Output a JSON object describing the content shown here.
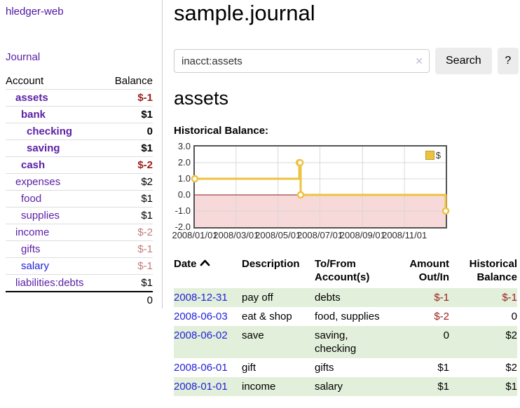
{
  "app": {
    "title": "hledger-web",
    "nav_journal": "Journal"
  },
  "colors": {
    "accent_purple": "#5b21a6",
    "link_blue": "#2323d8",
    "negative_red": "#9e1c1c",
    "negative_rose": "#c47a7a",
    "row_green": "#e2efda",
    "series_yellow": "#edc240"
  },
  "sidebar": {
    "headers": {
      "account": "Account",
      "balance": "Balance"
    },
    "accounts": [
      {
        "name": "assets",
        "balance": "$-1",
        "indent": 1,
        "bold": true,
        "negative": true
      },
      {
        "name": "bank",
        "balance": "$1",
        "indent": 2,
        "bold": true,
        "negative": false
      },
      {
        "name": "checking",
        "balance": "0",
        "indent": 3,
        "bold": true,
        "negative": false
      },
      {
        "name": "saving",
        "balance": "$1",
        "indent": 3,
        "bold": true,
        "negative": false
      },
      {
        "name": "cash",
        "balance": "$-2",
        "indent": 2,
        "bold": true,
        "negative": true
      },
      {
        "name": "expenses",
        "balance": "$2",
        "indent": 1,
        "bold": false,
        "negative": false
      },
      {
        "name": "food",
        "balance": "$1",
        "indent": 2,
        "bold": false,
        "negative": false
      },
      {
        "name": "supplies",
        "balance": "$1",
        "indent": 2,
        "bold": false,
        "negative": false
      },
      {
        "name": "income",
        "balance": "$-2",
        "indent": 1,
        "bold": false,
        "negative": true
      },
      {
        "name": "gifts",
        "balance": "$-1",
        "indent": 2,
        "bold": false,
        "negative": true
      },
      {
        "name": "salary",
        "balance": "$-1",
        "indent": 2,
        "bold": false,
        "negative": true,
        "link_color": "blue"
      },
      {
        "name": "liabilities:debts",
        "balance": "$1",
        "indent": 1,
        "bold": false,
        "negative": false
      }
    ],
    "total": "0"
  },
  "header": {
    "title": "sample.journal"
  },
  "search": {
    "query": "inacct:assets",
    "clear_icon": "✕",
    "search_label": "Search",
    "help_label": "?"
  },
  "account_page": {
    "heading": "assets",
    "chart_label": "Historical Balance:"
  },
  "chart_data": {
    "type": "line",
    "title": "Historical Balance:",
    "step": true,
    "x_start": "2008-01-01",
    "x_end": "2008-12-31",
    "x_ticks": [
      "2008/01/01",
      "2008/03/01",
      "2008/05/01",
      "2008/07/01",
      "2008/09/01",
      "2008/11/01"
    ],
    "y_ticks": [
      "3.0",
      "2.0",
      "1.0",
      "0.0",
      "-1.0",
      "-2.0"
    ],
    "ylim": [
      -2,
      3
    ],
    "grid": true,
    "legend_position": "top-right",
    "negative_region_color": "#f8d9d9",
    "zero_line_color": "#8b1a1a",
    "gridline_color": "#d8d8d8",
    "series": [
      {
        "name": "$",
        "color": "#edc240",
        "points": [
          [
            "2008-01-01",
            1
          ],
          [
            "2008-06-01",
            2
          ],
          [
            "2008-06-02",
            2
          ],
          [
            "2008-06-03",
            0
          ],
          [
            "2008-12-31",
            -1
          ]
        ]
      }
    ]
  },
  "register": {
    "headers": {
      "date": "Date",
      "description": "Description",
      "accounts": "To/From Account(s)",
      "amount": "Amount Out/In",
      "balance": "Historical Balance"
    },
    "sort": "ascending",
    "rows": [
      {
        "date": "2008-12-31",
        "description": "pay off",
        "accounts": "debts",
        "amount": "$-1",
        "balance": "$-1"
      },
      {
        "date": "2008-06-03",
        "description": "eat & shop",
        "accounts": "food, supplies",
        "amount": "$-2",
        "balance": "0"
      },
      {
        "date": "2008-06-02",
        "description": "save",
        "accounts": "saving, checking",
        "amount": "0",
        "balance": "$2"
      },
      {
        "date": "2008-06-01",
        "description": "gift",
        "accounts": "gifts",
        "amount": "$1",
        "balance": "$2"
      },
      {
        "date": "2008-01-01",
        "description": "income",
        "accounts": "salary",
        "amount": "$1",
        "balance": "$1"
      }
    ]
  }
}
